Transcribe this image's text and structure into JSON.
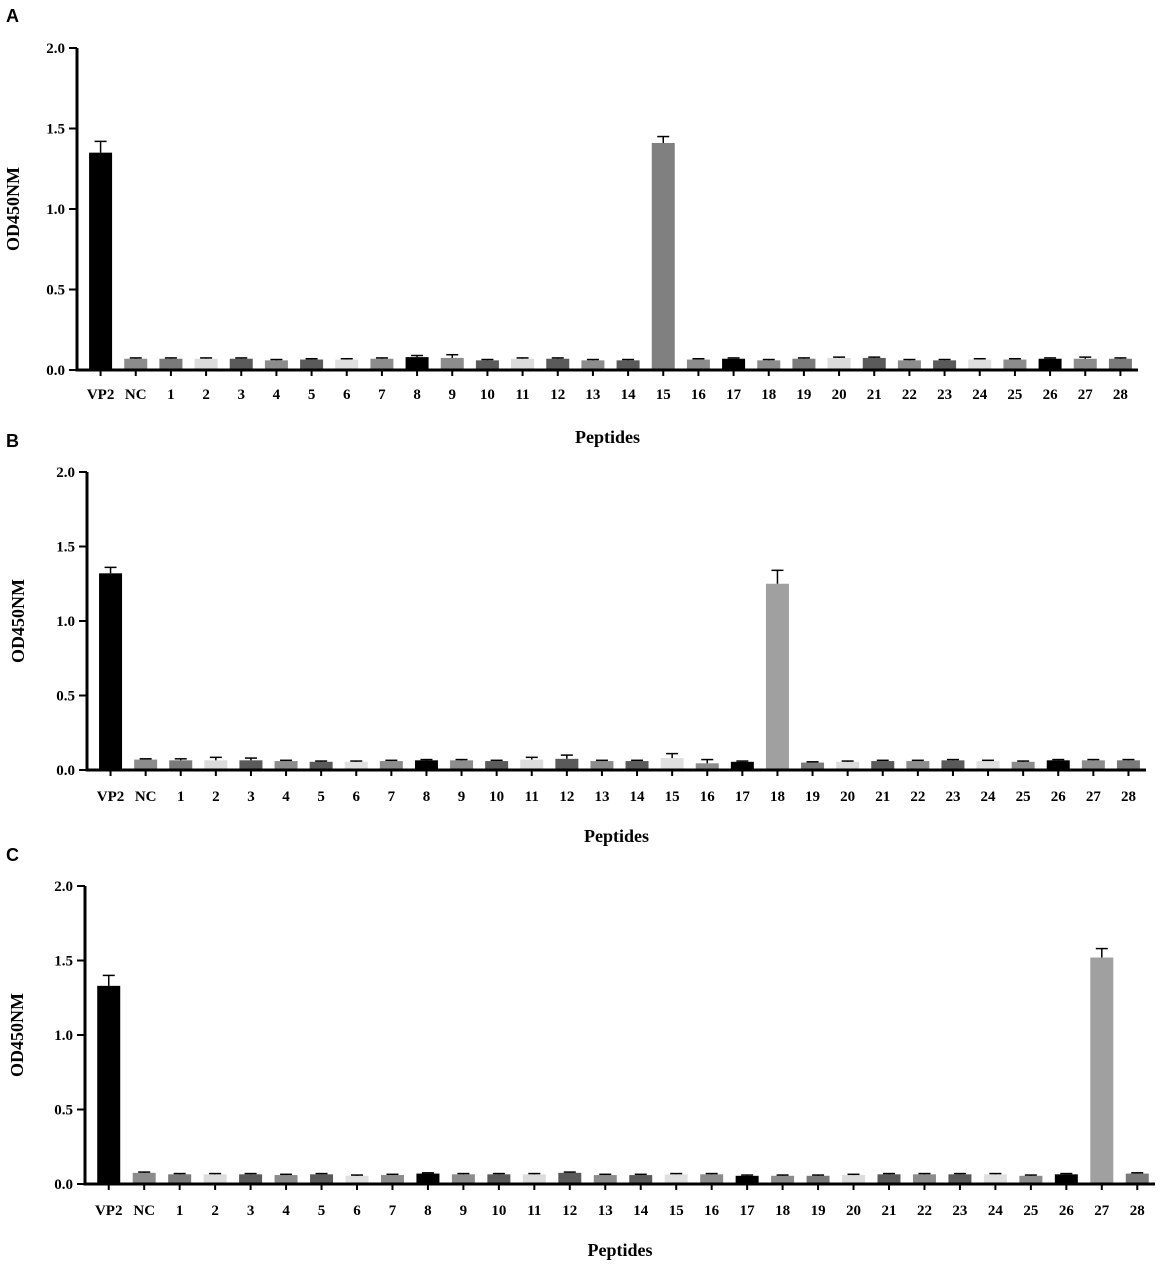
{
  "chart_data": [
    {
      "type": "bar",
      "panel_label": "A",
      "xlabel": "Peptides",
      "ylabel": "OD450NM",
      "ylim": [
        0,
        2.0
      ],
      "yticks": [
        "0.0",
        "0.5",
        "1.0",
        "1.5",
        "2.0"
      ],
      "categories": [
        "VP2",
        "NC",
        "1",
        "2",
        "3",
        "4",
        "5",
        "6",
        "7",
        "8",
        "9",
        "10",
        "11",
        "12",
        "13",
        "14",
        "15",
        "16",
        "17",
        "18",
        "19",
        "20",
        "21",
        "22",
        "23",
        "24",
        "25",
        "26",
        "27",
        "28"
      ],
      "values": [
        1.35,
        0.07,
        0.07,
        0.07,
        0.07,
        0.06,
        0.065,
        0.065,
        0.07,
        0.08,
        0.075,
        0.06,
        0.07,
        0.07,
        0.06,
        0.06,
        1.41,
        0.065,
        0.07,
        0.06,
        0.07,
        0.075,
        0.075,
        0.06,
        0.06,
        0.065,
        0.065,
        0.07,
        0.07,
        0.07
      ],
      "errors": [
        0.07,
        0.005,
        0.005,
        0.005,
        0.005,
        0.005,
        0.005,
        0.005,
        0.005,
        0.01,
        0.02,
        0.005,
        0.005,
        0.005,
        0.005,
        0.005,
        0.04,
        0.005,
        0.005,
        0.005,
        0.005,
        0.005,
        0.005,
        0.005,
        0.005,
        0.005,
        0.005,
        0.005,
        0.01,
        0.005
      ],
      "colors": [
        "#000000",
        "#8c8c8c",
        "#7a7a7a",
        "#dcdcdc",
        "#5a5a5a",
        "#8c8c8c",
        "#5a5a5a",
        "#e0e0e0",
        "#8c8c8c",
        "#000000",
        "#8c8c8c",
        "#5a5a5a",
        "#dcdcdc",
        "#5a5a5a",
        "#8c8c8c",
        "#5a5a5a",
        "#808080",
        "#8c8c8c",
        "#000000",
        "#8c8c8c",
        "#7a7a7a",
        "#dcdcdc",
        "#5a5a5a",
        "#8c8c8c",
        "#5a5a5a",
        "#e0e0e0",
        "#8c8c8c",
        "#000000",
        "#8c8c8c",
        "#7a7a7a"
      ]
    },
    {
      "type": "bar",
      "panel_label": "B",
      "xlabel": "Peptides",
      "ylabel": "OD450NM",
      "ylim": [
        0,
        2.0
      ],
      "yticks": [
        "0.0",
        "0.5",
        "1.0",
        "1.5",
        "2.0"
      ],
      "categories": [
        "VP2",
        "NC",
        "1",
        "2",
        "3",
        "4",
        "5",
        "6",
        "7",
        "8",
        "9",
        "10",
        "11",
        "12",
        "13",
        "14",
        "15",
        "16",
        "17",
        "18",
        "19",
        "20",
        "21",
        "22",
        "23",
        "24",
        "25",
        "26",
        "27",
        "28"
      ],
      "values": [
        1.32,
        0.07,
        0.065,
        0.065,
        0.065,
        0.06,
        0.055,
        0.055,
        0.06,
        0.065,
        0.065,
        0.06,
        0.07,
        0.075,
        0.06,
        0.06,
        0.08,
        0.045,
        0.055,
        1.25,
        0.05,
        0.055,
        0.06,
        0.06,
        0.065,
        0.06,
        0.055,
        0.065,
        0.065,
        0.065
      ],
      "errors": [
        0.04,
        0.005,
        0.01,
        0.02,
        0.015,
        0.005,
        0.005,
        0.005,
        0.005,
        0.005,
        0.005,
        0.005,
        0.015,
        0.025,
        0.005,
        0.005,
        0.03,
        0.025,
        0.005,
        0.09,
        0.005,
        0.005,
        0.005,
        0.005,
        0.005,
        0.005,
        0.005,
        0.005,
        0.005,
        0.005
      ],
      "colors": [
        "#000000",
        "#8c8c8c",
        "#7a7a7a",
        "#dcdcdc",
        "#5a5a5a",
        "#8c8c8c",
        "#5a5a5a",
        "#e0e0e0",
        "#8c8c8c",
        "#000000",
        "#8c8c8c",
        "#5a5a5a",
        "#dcdcdc",
        "#5a5a5a",
        "#8c8c8c",
        "#5a5a5a",
        "#e0e0e0",
        "#8c8c8c",
        "#000000",
        "#a0a0a0",
        "#7a7a7a",
        "#dcdcdc",
        "#5a5a5a",
        "#8c8c8c",
        "#5a5a5a",
        "#e0e0e0",
        "#8c8c8c",
        "#000000",
        "#8c8c8c",
        "#7a7a7a"
      ]
    },
    {
      "type": "bar",
      "panel_label": "C",
      "xlabel": "Peptides",
      "ylabel": "OD450NM",
      "ylim": [
        0,
        2.0
      ],
      "yticks": [
        "0.0",
        "0.5",
        "1.0",
        "1.5",
        "2.0"
      ],
      "categories": [
        "VP2",
        "NC",
        "1",
        "2",
        "3",
        "4",
        "5",
        "6",
        "7",
        "8",
        "9",
        "10",
        "11",
        "12",
        "13",
        "14",
        "15",
        "16",
        "17",
        "18",
        "19",
        "20",
        "21",
        "22",
        "23",
        "24",
        "25",
        "26",
        "27",
        "28"
      ],
      "values": [
        1.33,
        0.075,
        0.065,
        0.065,
        0.065,
        0.06,
        0.065,
        0.055,
        0.06,
        0.07,
        0.065,
        0.065,
        0.065,
        0.075,
        0.06,
        0.06,
        0.065,
        0.065,
        0.055,
        0.055,
        0.055,
        0.06,
        0.065,
        0.065,
        0.065,
        0.065,
        0.055,
        0.065,
        1.52,
        0.07
      ],
      "errors": [
        0.07,
        0.005,
        0.005,
        0.005,
        0.005,
        0.005,
        0.005,
        0.005,
        0.005,
        0.005,
        0.005,
        0.005,
        0.005,
        0.005,
        0.005,
        0.005,
        0.005,
        0.005,
        0.005,
        0.005,
        0.005,
        0.005,
        0.005,
        0.005,
        0.005,
        0.005,
        0.005,
        0.005,
        0.06,
        0.005
      ],
      "colors": [
        "#000000",
        "#8c8c8c",
        "#7a7a7a",
        "#dcdcdc",
        "#5a5a5a",
        "#8c8c8c",
        "#5a5a5a",
        "#e0e0e0",
        "#8c8c8c",
        "#000000",
        "#8c8c8c",
        "#5a5a5a",
        "#dcdcdc",
        "#5a5a5a",
        "#8c8c8c",
        "#5a5a5a",
        "#e0e0e0",
        "#8c8c8c",
        "#000000",
        "#8c8c8c",
        "#7a7a7a",
        "#dcdcdc",
        "#5a5a5a",
        "#8c8c8c",
        "#5a5a5a",
        "#e0e0e0",
        "#8c8c8c",
        "#000000",
        "#a0a0a0",
        "#7a7a7a"
      ]
    }
  ]
}
